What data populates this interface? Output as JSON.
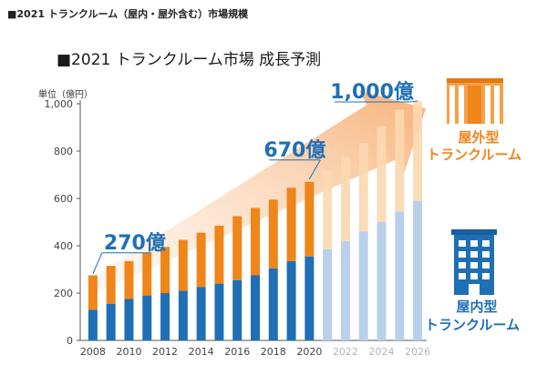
{
  "heading": "■2021 トランクルーム（屋内・屋外含む）市場規模",
  "chart_data": {
    "type": "bar",
    "stacked": true,
    "title": "■2021 トランクルーム市場 成長予測",
    "ylabel": "単位（億円）",
    "ylim": [
      0,
      1000
    ],
    "yticks": [
      0,
      200,
      400,
      600,
      800,
      1000
    ],
    "categories": [
      "2008",
      "2009",
      "2010",
      "2011",
      "2012",
      "2013",
      "2014",
      "2015",
      "2016",
      "2017",
      "2018",
      "2019",
      "2020",
      "2021",
      "2022",
      "2023",
      "2024",
      "2025",
      "2026"
    ],
    "x_tick_labels": [
      "2008",
      "2010",
      "2012",
      "2014",
      "2016",
      "2018",
      "2020",
      "2022",
      "2024",
      "2026"
    ],
    "forecast_start": "2021",
    "series": [
      {
        "name": "屋内型トランクルーム",
        "values": [
          130,
          155,
          175,
          190,
          200,
          210,
          225,
          240,
          255,
          275,
          305,
          335,
          355,
          385,
          420,
          460,
          500,
          545,
          590
        ]
      },
      {
        "name": "屋外型トランクルーム",
        "values": [
          145,
          160,
          160,
          180,
          195,
          215,
          230,
          245,
          270,
          285,
          290,
          310,
          315,
          335,
          355,
          375,
          405,
          430,
          420
        ]
      }
    ],
    "colors": {
      "indoor": "#1f6fb5",
      "outdoor": "#f08519",
      "indoor_forecast": "#b9d0ea",
      "outdoor_forecast": "#fbd8b0",
      "arrow": "#f6b784"
    },
    "annotations": [
      {
        "text": "270億",
        "year": "2008",
        "value": 270
      },
      {
        "text": "670億",
        "year": "2020",
        "value": 670
      },
      {
        "text": "1,000億",
        "year": "2026",
        "value": 1000
      }
    ],
    "legend": {
      "outdoor_line1": "屋外型",
      "outdoor_line2": "トランクルーム",
      "indoor_line1": "屋内型",
      "indoor_line2": "トランクルーム"
    },
    "legend_icons": {
      "outdoor": "storage-container-icon",
      "indoor": "office-building-icon"
    }
  }
}
